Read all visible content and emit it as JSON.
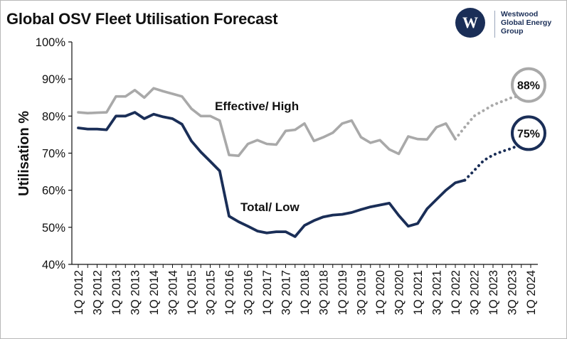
{
  "title": "Global OSV Fleet Utilisation Forecast",
  "logo": {
    "icon": "westwood-w-logo-icon",
    "mark": "W",
    "lines": [
      "Westwood",
      "Global Energy",
      "Group"
    ],
    "color": "#1a2e57"
  },
  "chart_data": {
    "type": "line",
    "title": "Global OSV Fleet Utilisation Forecast",
    "xlabel": "",
    "ylabel": "Utilisation %",
    "ylim": [
      40,
      100
    ],
    "yticks": [
      "40%",
      "50%",
      "60%",
      "70%",
      "80%",
      "90%",
      "100%"
    ],
    "x_tick_labels": [
      "1Q 2012",
      "3Q 2012",
      "1Q 2013",
      "3Q 2013",
      "1Q 2014",
      "3Q 2014",
      "1Q 2015",
      "3Q 2015",
      "1Q 2016",
      "3Q 2016",
      "1Q 2017",
      "3Q 2017",
      "1Q 2018",
      "3Q 2018",
      "1Q 2019",
      "3Q 2019",
      "1Q 2020",
      "3Q 2020",
      "1Q 2021",
      "3Q 2021",
      "1Q 2022",
      "3Q 2022",
      "1Q 2023",
      "3Q 2023",
      "1Q 2024"
    ],
    "grid": false,
    "legend": "none",
    "series": [
      {
        "name": "Effective/ High",
        "color": "#a9a9a9",
        "values": [
          81.0,
          80.8,
          80.9,
          81.0,
          85.3,
          85.3,
          87.0,
          85.0,
          87.5,
          86.7,
          86.0,
          85.3,
          82.0,
          80.0,
          80.0,
          78.8,
          69.5,
          69.3,
          72.5,
          73.5,
          72.5,
          72.3,
          76.0,
          76.3,
          78.0,
          73.3,
          74.3,
          75.5,
          78.0,
          78.8,
          74.3,
          72.8,
          73.5,
          71.0,
          69.8,
          74.5,
          73.8,
          73.7,
          77.0,
          78.0,
          73.8
        ],
        "forecast": [
          [
            40,
            73.8
          ],
          [
            41,
            77.0
          ],
          [
            42,
            80.0
          ],
          [
            43,
            81.5
          ],
          [
            44,
            83.0
          ],
          [
            45,
            84.0
          ],
          [
            46,
            85.0
          ],
          [
            47,
            85.5
          ],
          [
            48,
            88.0
          ]
        ],
        "end_label": "88%"
      },
      {
        "name": "Total/ Low",
        "color": "#1a2e57",
        "values": [
          76.8,
          76.5,
          76.5,
          76.3,
          80.0,
          80.0,
          81.0,
          79.3,
          80.5,
          79.8,
          79.3,
          77.8,
          73.3,
          70.3,
          67.8,
          65.2,
          53.0,
          51.5,
          50.3,
          49.0,
          48.5,
          48.8,
          48.8,
          47.5,
          50.5,
          51.8,
          52.8,
          53.3,
          53.5,
          54.0,
          54.8,
          55.5,
          56.0,
          56.5,
          53.2,
          50.3,
          51.0,
          55.0,
          57.5,
          60.0,
          62.0,
          62.7
        ],
        "forecast": [
          [
            41,
            62.7
          ],
          [
            42,
            65.3
          ],
          [
            43,
            68.0
          ],
          [
            44,
            69.5
          ],
          [
            45,
            70.5
          ],
          [
            46,
            71.3
          ],
          [
            47,
            72.5
          ],
          [
            48,
            75.0
          ]
        ],
        "end_label": "75%"
      }
    ],
    "annotations": [
      "Effective/ High",
      "Total/ Low"
    ]
  }
}
